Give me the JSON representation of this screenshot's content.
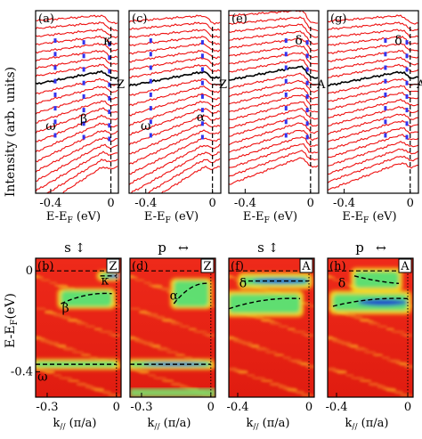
{
  "figure": {
    "top_ylabel": "Intensity (arb. units)",
    "bottom_ylabel": "E-E",
    "bottom_ylabel_sub": "F",
    "bottom_ylabel_unit": "(eV)"
  },
  "chart_data": [
    {
      "panel": "a",
      "type": "line",
      "xlabel": "E-E",
      "xlabel_sub": "F",
      "xlabel_unit": "(eV)",
      "xlim": [
        -0.5,
        0.05
      ],
      "xticks": [
        "-0.4",
        "0"
      ],
      "vline": 0,
      "annotations": [
        {
          "text": "κ",
          "x": 0.0
        },
        {
          "text": "β",
          "x": -0.18
        },
        {
          "text": "ω",
          "x": -0.4
        }
      ],
      "point_label": "Z",
      "num_curves": 22,
      "highlight_index": 8,
      "curve_color": "#ee1111",
      "highlight_color": "#000000",
      "marker_color": "#3333ee"
    },
    {
      "panel": "c",
      "type": "line",
      "xlabel": "E-E",
      "xlabel_sub": "F",
      "xlabel_unit": "(eV)",
      "xlim": [
        -0.5,
        0.05
      ],
      "xticks": [
        "-0.4",
        "0"
      ],
      "vline": 0,
      "annotations": [
        {
          "text": "α",
          "x": -0.07
        },
        {
          "text": "ω",
          "x": -0.4
        }
      ],
      "point_label": "Z",
      "num_curves": 22,
      "highlight_index": 8,
      "curve_color": "#ee1111",
      "highlight_color": "#000000",
      "marker_color": "#3333ee"
    },
    {
      "panel": "e",
      "type": "line",
      "xlabel": "E-E",
      "xlabel_sub": "F",
      "xlabel_unit": "(eV)",
      "xlim": [
        -0.5,
        0.05
      ],
      "xticks": [
        "-0.4",
        "0"
      ],
      "vline": 0,
      "annotations": [
        {
          "text": "δ",
          "x": -0.05
        }
      ],
      "point_label": "A",
      "num_curves": 22,
      "highlight_index": 8,
      "curve_color": "#ee1111",
      "highlight_color": "#000000",
      "marker_color": "#3333ee"
    },
    {
      "panel": "g",
      "type": "line",
      "xlabel": "E-E",
      "xlabel_sub": "F",
      "xlabel_unit": "(eV)",
      "xlim": [
        -0.5,
        0.05
      ],
      "xticks": [
        "-0.4",
        "0"
      ],
      "vline": 0,
      "annotations": [
        {
          "text": "δ",
          "x": -0.05
        }
      ],
      "point_label": "A",
      "num_curves": 22,
      "highlight_index": 8,
      "curve_color": "#ee1111",
      "highlight_color": "#000000",
      "marker_color": "#3333ee"
    },
    {
      "panel": "b",
      "type": "heatmap",
      "polarization": "s",
      "pol_arrow": "↕",
      "xlabel": "k",
      "xlabel_sub": "//",
      "xlabel_unit": "(π/a)",
      "xlim": [
        -0.35,
        0.02
      ],
      "xticks": [
        {
          "v": -0.3,
          "t": "-0.3"
        },
        {
          "v": 0,
          "t": "0"
        }
      ],
      "ylim": [
        -0.5,
        0.05
      ],
      "yticks": [
        {
          "v": 0,
          "t": "0"
        },
        {
          "v": -0.4,
          "t": "-0.4"
        }
      ],
      "point_label": "Z",
      "annotations": [
        {
          "text": "κ",
          "x": -0.05,
          "y": -0.04
        },
        {
          "text": "β",
          "x": -0.22,
          "y": -0.15
        },
        {
          "text": "ω",
          "x": -0.32,
          "y": -0.42
        }
      ],
      "bands": [
        {
          "x0": -0.07,
          "y0": -0.02,
          "x1": 0.0,
          "y1": -0.02,
          "shape": "flat"
        },
        {
          "x0": -0.24,
          "y0": -0.13,
          "x1": -0.02,
          "y1": -0.09,
          "shape": "curved"
        },
        {
          "x0": -0.35,
          "y0": -0.37,
          "x1": 0.0,
          "y1": -0.37,
          "shape": "flat"
        }
      ]
    },
    {
      "panel": "d",
      "type": "heatmap",
      "polarization": "p",
      "pol_arrow": "↔",
      "xlabel": "k",
      "xlabel_sub": "//",
      "xlabel_unit": "(π/a)",
      "xlim": [
        -0.35,
        0.02
      ],
      "xticks": [
        {
          "v": -0.3,
          "t": "-0.3"
        },
        {
          "v": 0,
          "t": "0"
        }
      ],
      "ylim": [
        -0.5,
        0.05
      ],
      "yticks": [],
      "point_label": "Z",
      "annotations": [
        {
          "text": "α",
          "x": -0.16,
          "y": -0.1
        }
      ],
      "bands": [
        {
          "x0": -0.16,
          "y0": -0.13,
          "x1": -0.01,
          "y1": -0.05,
          "shape": "curved"
        },
        {
          "x0": -0.35,
          "y0": -0.37,
          "x1": 0.0,
          "y1": -0.37,
          "shape": "flat"
        }
      ]
    },
    {
      "panel": "f",
      "type": "heatmap",
      "polarization": "s",
      "pol_arrow": "↕",
      "xlabel": "k",
      "xlabel_sub": "//",
      "xlabel_unit": "(π/a)",
      "xlim": [
        -0.45,
        0.03
      ],
      "xticks": [
        {
          "v": -0.4,
          "t": "-0.4"
        },
        {
          "v": 0,
          "t": "0"
        }
      ],
      "ylim": [
        -0.5,
        0.05
      ],
      "yticks": [],
      "point_label": "A",
      "annotations": [
        {
          "text": "δ",
          "x": -0.37,
          "y": -0.05
        }
      ],
      "bands": [
        {
          "x0": -0.38,
          "y0": -0.04,
          "x1": 0.0,
          "y1": -0.04,
          "shape": "flat"
        },
        {
          "x0": -0.45,
          "y0": -0.15,
          "x1": -0.05,
          "y1": -0.11,
          "shape": "curved"
        }
      ]
    },
    {
      "panel": "h",
      "type": "heatmap",
      "polarization": "p",
      "pol_arrow": "↔",
      "xlabel": "k",
      "xlabel_sub": "//",
      "xlabel_unit": "(π/a)",
      "xlim": [
        -0.45,
        0.03
      ],
      "xticks": [
        {
          "v": -0.4,
          "t": "-0.4"
        },
        {
          "v": 0,
          "t": "0"
        }
      ],
      "ylim": [
        -0.5,
        0.05
      ],
      "yticks": [],
      "point_label": "A",
      "annotations": [
        {
          "text": "δ",
          "x": -0.37,
          "y": -0.05
        }
      ],
      "bands": [
        {
          "x0": -0.3,
          "y0": -0.02,
          "x1": -0.05,
          "y1": -0.05,
          "shape": "curved"
        },
        {
          "x0": -0.42,
          "y0": -0.14,
          "x1": 0.0,
          "y1": -0.11,
          "shape": "curved"
        }
      ]
    }
  ]
}
